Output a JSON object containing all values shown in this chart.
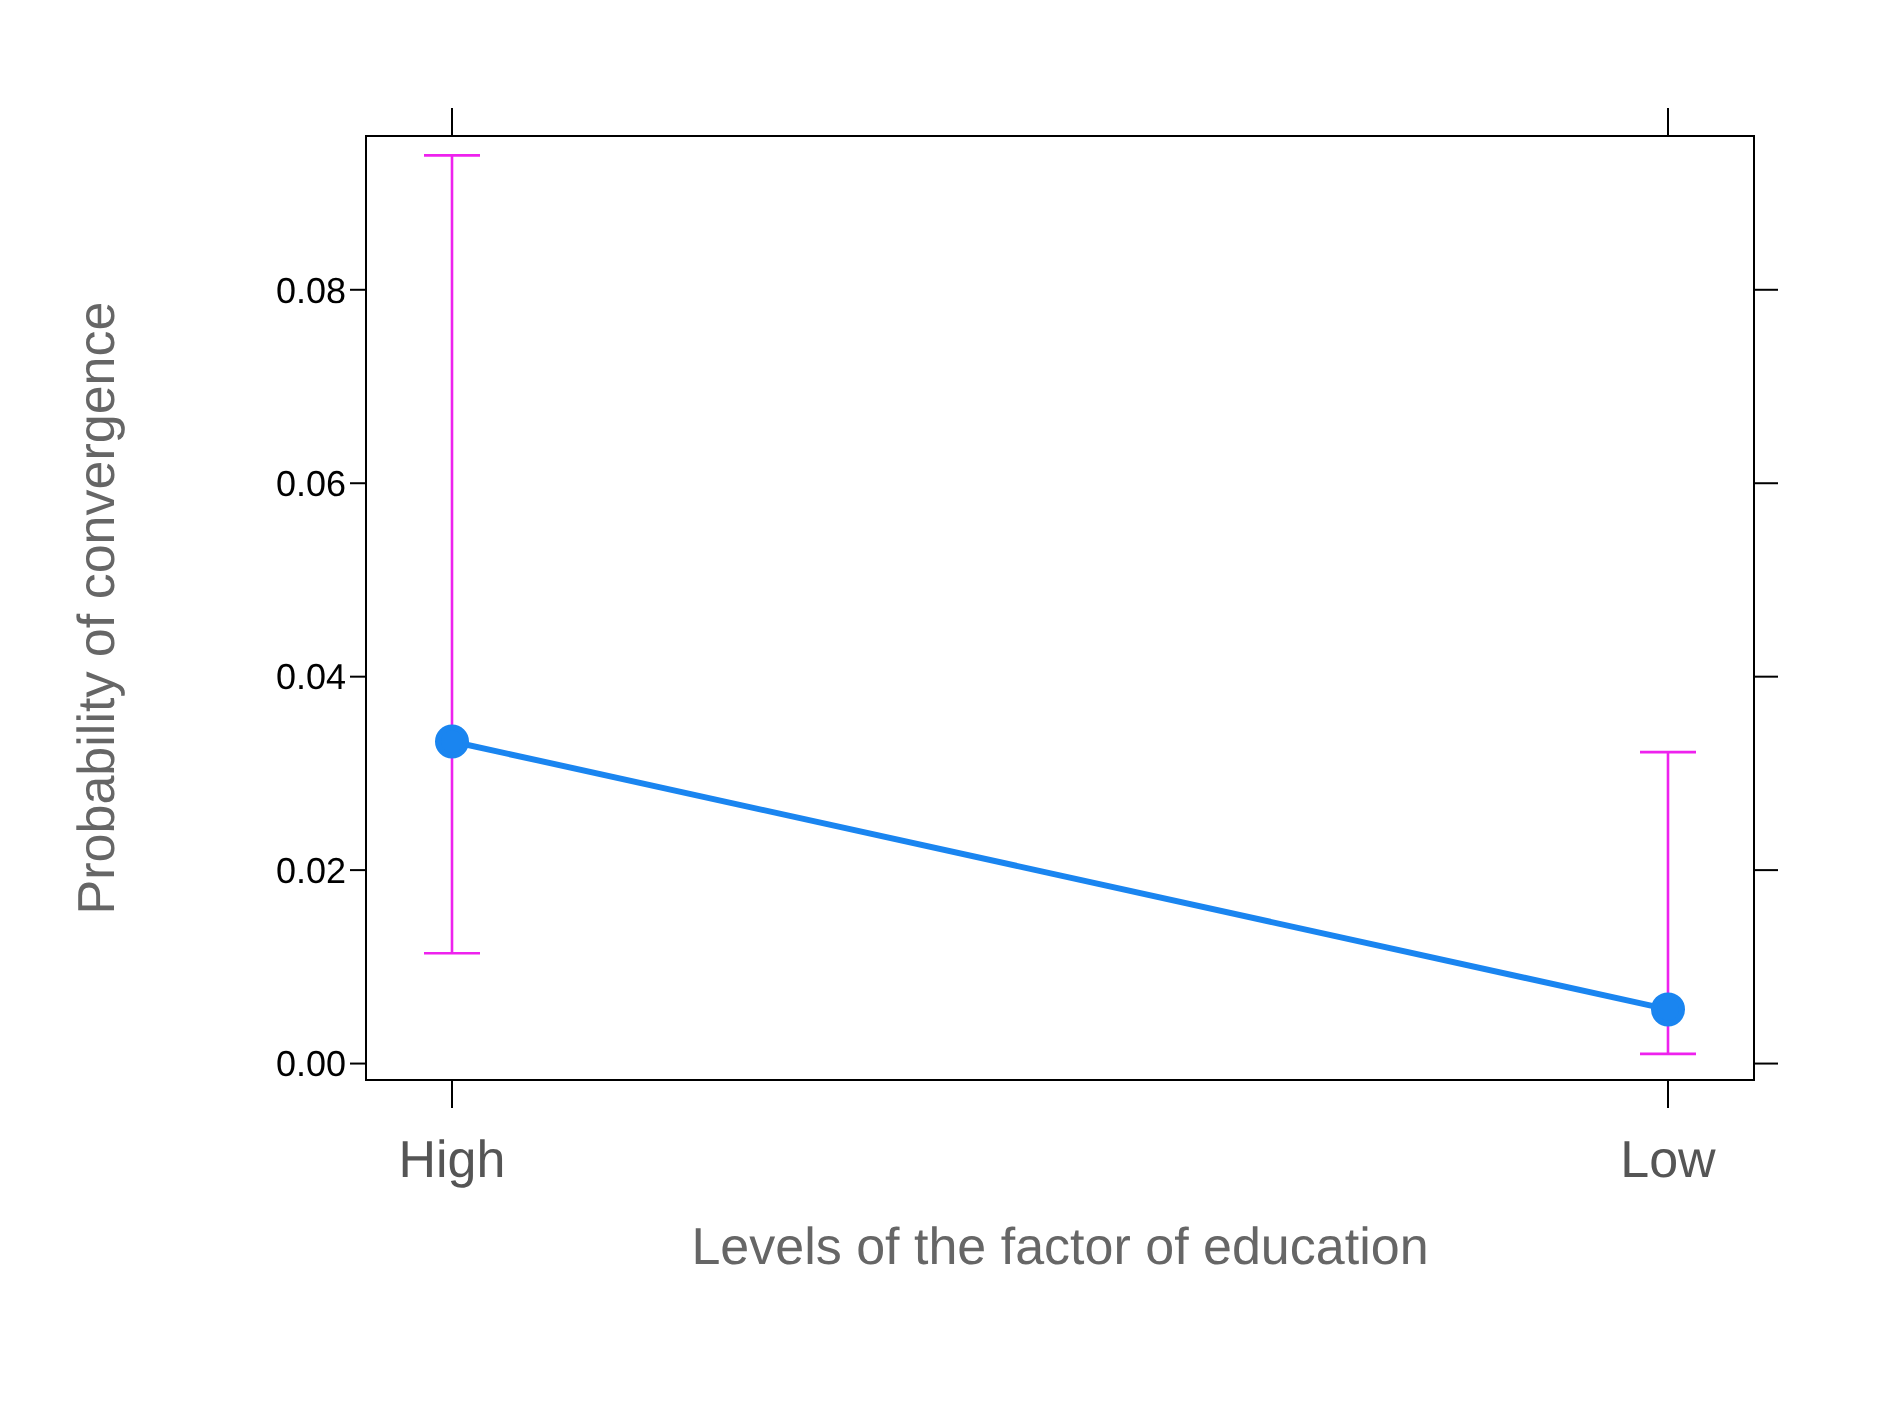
{
  "chart_data": {
    "type": "line",
    "xlabel": "Levels of the factor of education",
    "ylabel": "Probability of convergence",
    "categories": [
      "High",
      "Low"
    ],
    "series": [
      {
        "color": "#1a85f0",
        "values": [
          0.0333,
          0.0056
        ],
        "errors": [
          [
            0.0114,
            0.0939
          ],
          [
            0.001,
            0.0322
          ]
        ]
      }
    ],
    "ylim": [
      -0.0017,
      0.0959
    ],
    "yticks": [
      {
        "value": 0,
        "label": "0.00"
      },
      {
        "value": 0.02,
        "label": "0.02"
      },
      {
        "value": 0.04,
        "label": "0.04"
      },
      {
        "value": 0.06,
        "label": "0.06"
      },
      {
        "value": 0.08,
        "label": "0.08"
      }
    ],
    "marker": "circle",
    "legend": false
  }
}
